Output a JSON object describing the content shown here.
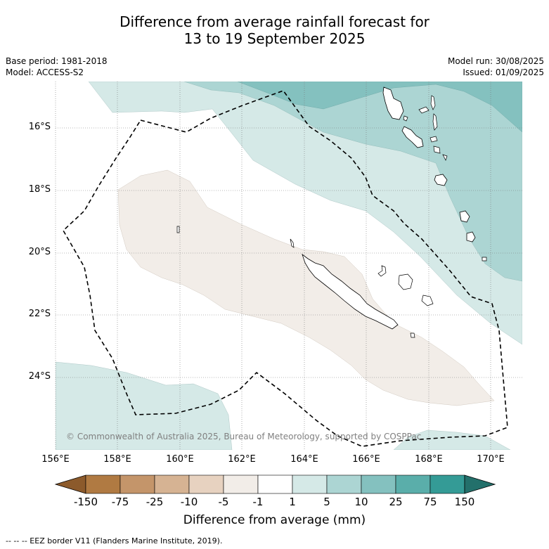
{
  "title_line1": "Difference from average rainfall forecast for",
  "title_line2": "13 to 19 September 2025",
  "base_period": "Base period: 1981-2018",
  "model": "Model: ACCESS-S2",
  "model_run": "Model run: 30/08/2025",
  "issued": "Issued: 01/09/2025",
  "copyright": "© Commonwealth of Australia 2025, Bureau of Meteorology, supported by COSPPac",
  "lon_labels": [
    "156°E",
    "158°E",
    "160°E",
    "162°E",
    "164°E",
    "166°E",
    "168°E",
    "170°E"
  ],
  "lat_labels": [
    "16°S",
    "18°S",
    "20°S",
    "22°S",
    "24°S"
  ],
  "colorbar": {
    "ticks": [
      "-150",
      "-75",
      "-25",
      "-10",
      "-5",
      "-1",
      "1",
      "5",
      "10",
      "25",
      "75",
      "150"
    ],
    "colors": [
      "#8c5a2b",
      "#b07a42",
      "#c4956a",
      "#d6b393",
      "#e7d2c0",
      "#f2ede8",
      "#ffffff",
      "#d5e9e7",
      "#acd5d3",
      "#84c1bf",
      "#5aaeaa",
      "#349b96",
      "#23706b"
    ],
    "label": "Difference from average (mm)"
  },
  "footnote": "-- -- -- EEZ border V11 (Flanders Marine Institute, 2019).",
  "map": {
    "lon_range": [
      156,
      171
    ],
    "lat_range": [
      -26.5,
      -14.5
    ]
  }
}
